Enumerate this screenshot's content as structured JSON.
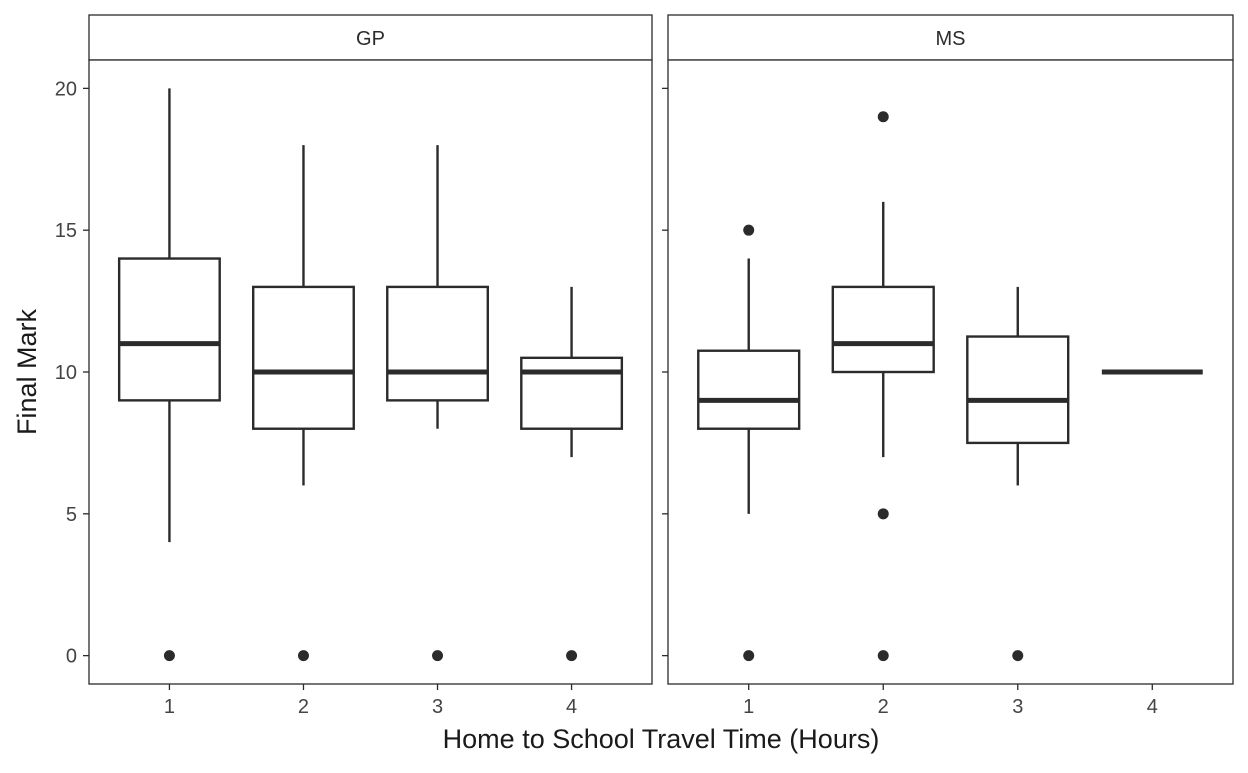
{
  "chart_data": {
    "type": "boxplot",
    "xlabel": "Home to School Travel Time (Hours)",
    "ylabel": "Final Mark",
    "ylim": [
      -1,
      21
    ],
    "yticks": [
      0,
      5,
      10,
      15,
      20
    ],
    "categories": [
      "1",
      "2",
      "3",
      "4"
    ],
    "grid": false,
    "colors": {
      "line": "#2b2b2b",
      "text": "#2b2b2b",
      "fill": "#ffffff"
    },
    "panels": [
      {
        "name": "GP",
        "boxes": [
          {
            "category": "1",
            "q1": 9,
            "median": 11,
            "q3": 14,
            "whisker_low": 4,
            "whisker_high": 20,
            "outliers": [
              0
            ]
          },
          {
            "category": "2",
            "q1": 8,
            "median": 10,
            "q3": 13,
            "whisker_low": 6,
            "whisker_high": 18,
            "outliers": [
              0
            ]
          },
          {
            "category": "3",
            "q1": 9,
            "median": 10,
            "q3": 13,
            "whisker_low": 8,
            "whisker_high": 18,
            "outliers": [
              0
            ]
          },
          {
            "category": "4",
            "q1": 8,
            "median": 10,
            "q3": 10.5,
            "whisker_low": 7,
            "whisker_high": 13,
            "outliers": [
              0
            ]
          }
        ]
      },
      {
        "name": "MS",
        "boxes": [
          {
            "category": "1",
            "q1": 8,
            "median": 9,
            "q3": 10.75,
            "whisker_low": 5,
            "whisker_high": 14,
            "outliers": [
              0,
              15
            ]
          },
          {
            "category": "2",
            "q1": 10,
            "median": 11,
            "q3": 13,
            "whisker_low": 7,
            "whisker_high": 16,
            "outliers": [
              0,
              5,
              19
            ]
          },
          {
            "category": "3",
            "q1": 7.5,
            "median": 9,
            "q3": 11.25,
            "whisker_low": 6,
            "whisker_high": 13,
            "outliers": [
              0
            ]
          },
          {
            "category": "4",
            "q1": 10,
            "median": 10,
            "q3": 10,
            "whisker_low": 10,
            "whisker_high": 10,
            "outliers": []
          }
        ]
      }
    ]
  }
}
